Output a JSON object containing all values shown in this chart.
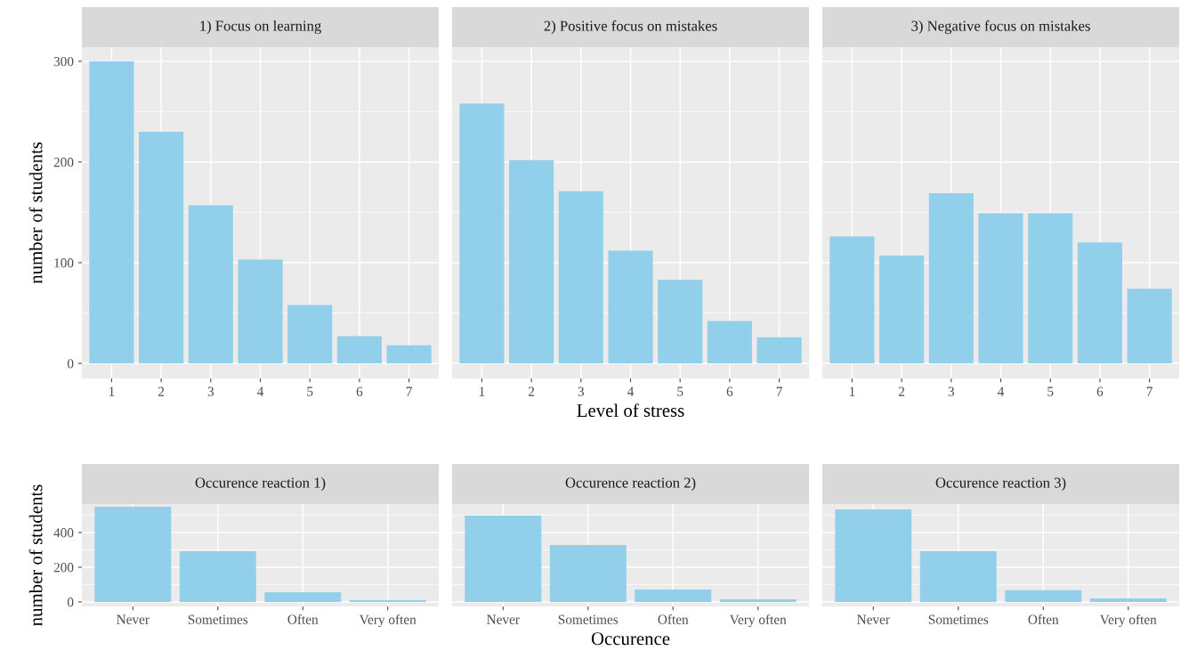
{
  "chart_data": [
    {
      "type": "bar",
      "title": "1) Focus on learning",
      "ylabel": "number of students",
      "categories": [
        "1",
        "2",
        "3",
        "4",
        "5",
        "6",
        "7"
      ],
      "values": [
        300,
        230,
        157,
        103,
        58,
        27,
        18
      ],
      "color": "#92cfea",
      "ylim": [
        -15,
        314
      ],
      "yticks": [
        0,
        100,
        200,
        300
      ],
      "grid": true
    },
    {
      "type": "bar",
      "title": "2) Positive focus on mistakes",
      "xlabel": "Level of stress",
      "categories": [
        "1",
        "2",
        "3",
        "4",
        "5",
        "6",
        "7"
      ],
      "values": [
        258,
        202,
        171,
        112,
        83,
        42,
        26
      ],
      "color": "#92cfea",
      "ylim": [
        -15,
        314
      ],
      "yticks": [
        0,
        100,
        200,
        300
      ],
      "grid": true,
      "tick_labels": "x"
    },
    {
      "type": "bar",
      "title": "3) Negative focus on mistakes",
      "categories": [
        "1",
        "2",
        "3",
        "4",
        "5",
        "6",
        "7"
      ],
      "values": [
        126,
        107,
        169,
        149,
        149,
        120,
        74
      ],
      "color": "#92cfea",
      "ylim": [
        -15,
        314
      ],
      "yticks": [
        0,
        100,
        200,
        300
      ],
      "grid": true,
      "tick_labels": "x"
    },
    {
      "type": "bar",
      "title": "Occurence reaction 1)",
      "ylabel": "number of students",
      "categories": [
        "Never",
        "Sometimes",
        "Often",
        "Very often"
      ],
      "values": [
        549,
        292,
        56,
        10
      ],
      "color": "#92cfea",
      "ylim": [
        -26,
        564
      ],
      "yticks": [
        0,
        200,
        400
      ],
      "grid": true
    },
    {
      "type": "bar",
      "title": "Occurence reaction 2)",
      "xlabel": "Occurence",
      "categories": [
        "Never",
        "Sometimes",
        "Often",
        "Very often"
      ],
      "values": [
        497,
        328,
        72,
        15
      ],
      "color": "#92cfea",
      "ylim": [
        -26,
        564
      ],
      "yticks": [
        0,
        200,
        400
      ],
      "grid": true,
      "tick_labels": "x"
    },
    {
      "type": "bar",
      "title": "Occurence reaction 3)",
      "categories": [
        "Never",
        "Sometimes",
        "Often",
        "Very often"
      ],
      "values": [
        533,
        292,
        67,
        20
      ],
      "color": "#92cfea",
      "ylim": [
        -26,
        564
      ],
      "yticks": [
        0,
        200,
        400
      ],
      "grid": true,
      "tick_labels": "x"
    }
  ]
}
